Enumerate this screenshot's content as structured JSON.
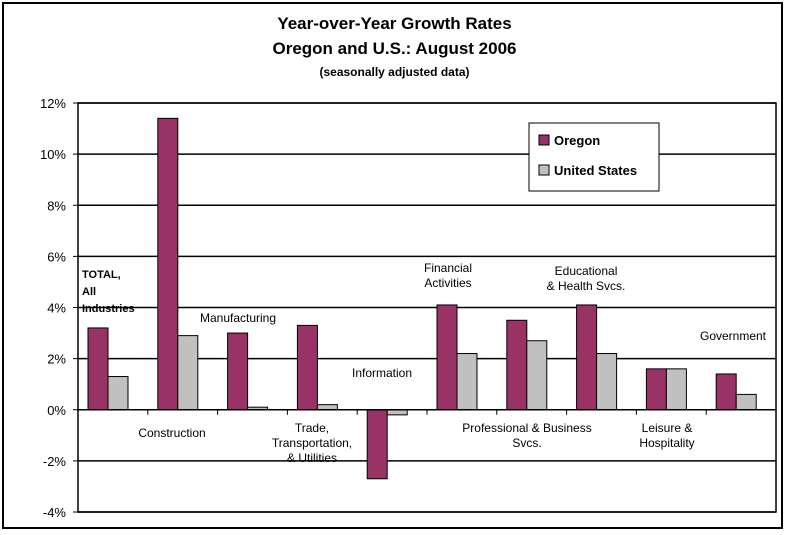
{
  "chart_data": {
    "type": "bar",
    "title": "Year-over-Year Growth Rates",
    "subtitle": "Oregon and U.S.: August 2006",
    "note": "(seasonally adjusted data)",
    "categories": [
      "TOTAL, All Industries",
      "Construction",
      "Manufacturing",
      "Trade, Transportation, & Utilities",
      "Information",
      "Financial Activities",
      "Professional & Business Svcs.",
      "Educational & Health Svcs.",
      "Leisure & Hospitality",
      "Government"
    ],
    "category_label_lines": [
      [
        "TOTAL,",
        "All",
        "Industries"
      ],
      [
        "Construction"
      ],
      [
        "Manufacturing"
      ],
      [
        "Trade,",
        "Transportation,",
        "& Utilities"
      ],
      [
        "Information"
      ],
      [
        "Financial",
        "Activities"
      ],
      [
        "Professional & Business",
        "Svcs."
      ],
      [
        "Educational",
        "& Health Svcs."
      ],
      [
        "Leisure &",
        "Hospitality"
      ],
      [
        "Government"
      ]
    ],
    "series": [
      {
        "name": "Oregon",
        "color": "#993366",
        "values": [
          3.2,
          11.4,
          3.0,
          3.3,
          -2.7,
          4.1,
          3.5,
          4.1,
          1.6,
          1.4
        ]
      },
      {
        "name": "United States",
        "color": "#c0c0c0",
        "values": [
          1.3,
          2.9,
          0.1,
          0.2,
          -0.2,
          2.2,
          2.7,
          2.2,
          1.6,
          0.6
        ]
      }
    ],
    "ylim": [
      -4,
      12
    ],
    "yticks": [
      "-4%",
      "-2%",
      "0%",
      "2%",
      "4%",
      "6%",
      "8%",
      "10%",
      "12%"
    ],
    "xlabel": "",
    "ylabel": "",
    "grid": true,
    "legend_position": "top-right"
  }
}
